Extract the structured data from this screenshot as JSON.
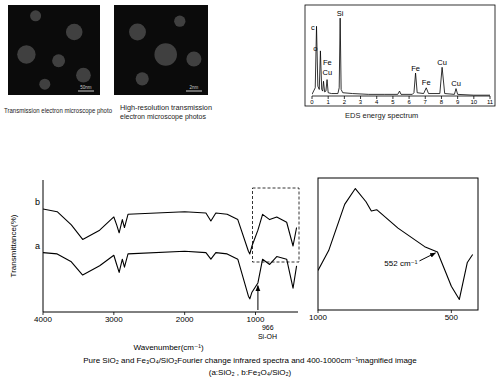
{
  "photos": [
    {
      "caption": [
        "Transmission electron microscope photo"
      ],
      "scale_label": "50nm"
    },
    {
      "caption": [
        "High-resolution transmission",
        "electron microscope photos"
      ],
      "scale_label": "2nm"
    }
  ],
  "chart_data": [
    {
      "type": "line",
      "title": "EDS energy spectrum",
      "x": [
        0,
        0.2,
        0.28,
        0.36,
        0.45,
        0.52,
        0.6,
        0.66,
        0.71,
        0.78,
        0.86,
        0.93,
        1.0,
        1.2,
        1.6,
        1.68,
        1.74,
        1.8,
        1.9,
        2.5,
        3.5,
        4.5,
        5.3,
        5.41,
        5.5,
        6.2,
        6.3,
        6.4,
        6.5,
        6.9,
        7.06,
        7.2,
        7.9,
        8.04,
        8.2,
        8.8,
        8.9,
        9.0,
        10,
        11
      ],
      "values": [
        2,
        10,
        85,
        12,
        8,
        55,
        8,
        6,
        18,
        5,
        6,
        20,
        4,
        3,
        3,
        10,
        95,
        8,
        4,
        3,
        2,
        2,
        2,
        6,
        2,
        2,
        4,
        28,
        4,
        3,
        10,
        3,
        3,
        35,
        3,
        2,
        9,
        2,
        1,
        1
      ],
      "color": "#000000",
      "xlim": [
        0,
        11
      ],
      "ylim": [
        0,
        100
      ],
      "xticks": [
        0,
        1,
        2,
        3,
        4,
        5,
        6,
        7,
        8,
        9,
        10,
        11
      ],
      "tick_labels": "x",
      "annotations": [
        {
          "text": "c",
          "x": 0.05,
          "y": 80
        },
        {
          "text": "o",
          "x": 0.2,
          "y": 55
        },
        {
          "text": "Fe",
          "x": 0.95,
          "y": 38
        },
        {
          "text": "Cu",
          "x": 0.95,
          "y": 26
        },
        {
          "text": "Si",
          "x": 1.74,
          "y": 97
        },
        {
          "text": "Fe",
          "x": 6.4,
          "y": 31
        },
        {
          "text": "Fe",
          "x": 7.06,
          "y": 13
        },
        {
          "text": "Cu",
          "x": 8.04,
          "y": 38
        },
        {
          "text": "Cu",
          "x": 8.9,
          "y": 12
        }
      ]
    },
    {
      "type": "line",
      "x": [
        4000,
        3800,
        3600,
        3440,
        3200,
        3000,
        2960,
        2925,
        2880,
        2850,
        2800,
        2000,
        1700,
        1630,
        1560,
        1400,
        1250,
        1100,
        1080,
        1050,
        966,
        900,
        800,
        700,
        560,
        470,
        420
      ],
      "series": [
        {
          "name": "a",
          "color": "#000000",
          "values": [
            45,
            44,
            38,
            28,
            35,
            43,
            36,
            30,
            40,
            34,
            44,
            46,
            45,
            40,
            45,
            44,
            40,
            12,
            10,
            15,
            22,
            40,
            36,
            42,
            40,
            18,
            35
          ]
        },
        {
          "name": "b",
          "color": "#000000",
          "values": [
            78,
            76,
            66,
            55,
            62,
            72,
            66,
            60,
            70,
            64,
            74,
            76,
            75,
            69,
            75,
            74,
            70,
            46,
            44,
            50,
            62,
            74,
            70,
            72,
            68,
            50,
            64
          ]
        }
      ],
      "xlim": [
        4000,
        400
      ],
      "ylim": [
        0,
        100
      ],
      "xticks": [
        4000,
        3000,
        2000,
        1000
      ],
      "x_label": "Wavenumber(cm⁻¹)",
      "y_label": "Transmittance(%)",
      "tick_labels": "x",
      "annotations": [
        {
          "lines": [
            "966",
            "Si-OH"
          ],
          "x": 966,
          "y": 20
        }
      ]
    },
    {
      "type": "line",
      "x": [
        1000,
        960,
        900,
        860,
        820,
        800,
        780,
        700,
        600,
        552,
        520,
        500,
        470,
        440,
        420
      ],
      "values": [
        30,
        45,
        80,
        92,
        82,
        75,
        76,
        62,
        48,
        44,
        28,
        18,
        8,
        36,
        42
      ],
      "color": "#000000",
      "xlim": [
        1000,
        400
      ],
      "ylim": [
        0,
        100
      ],
      "xticks": [
        1000,
        500
      ],
      "tick_labels": "x",
      "annotations": [
        {
          "text": "552 cm⁻¹",
          "x": 552,
          "y": 44
        }
      ]
    }
  ],
  "caption": [
    "Pure SiO₂ and Fe₃O₄/SiO₂Fourier change infrared spectra and 400-1000cm⁻¹magnified image",
    "(a:SiO₂ , b:Fe₃O₄/SiO₂)"
  ]
}
